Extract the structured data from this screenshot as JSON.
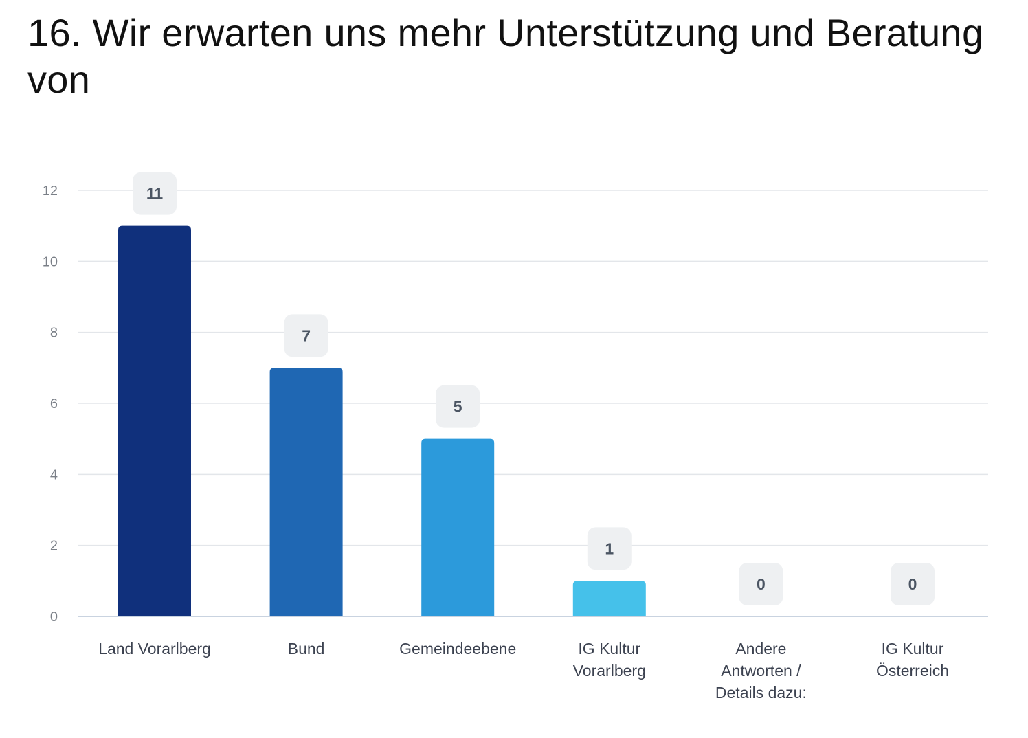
{
  "chart_data": {
    "type": "bar",
    "title": "16. Wir erwarten uns mehr Unterstützung und Beratung von",
    "xlabel": "",
    "ylabel": "",
    "categories": [
      [
        "Land Vorarlberg"
      ],
      [
        "Bund"
      ],
      [
        "Gemeindeebene"
      ],
      [
        "IG Kultur",
        "Vorarlberg"
      ],
      [
        "Andere",
        "Antworten /",
        "Details dazu:"
      ],
      [
        "IG Kultur",
        "Österreich"
      ]
    ],
    "values": [
      11,
      7,
      5,
      1,
      0,
      0
    ],
    "ylim": [
      0,
      12
    ],
    "yticks": [
      0,
      2,
      4,
      6,
      8,
      10,
      12
    ],
    "grid": true,
    "legend": "none",
    "colors": [
      "#10307c",
      "#1f67b3",
      "#2c9adb",
      "#45c1ea",
      "#45c1ea",
      "#45c1ea"
    ]
  }
}
